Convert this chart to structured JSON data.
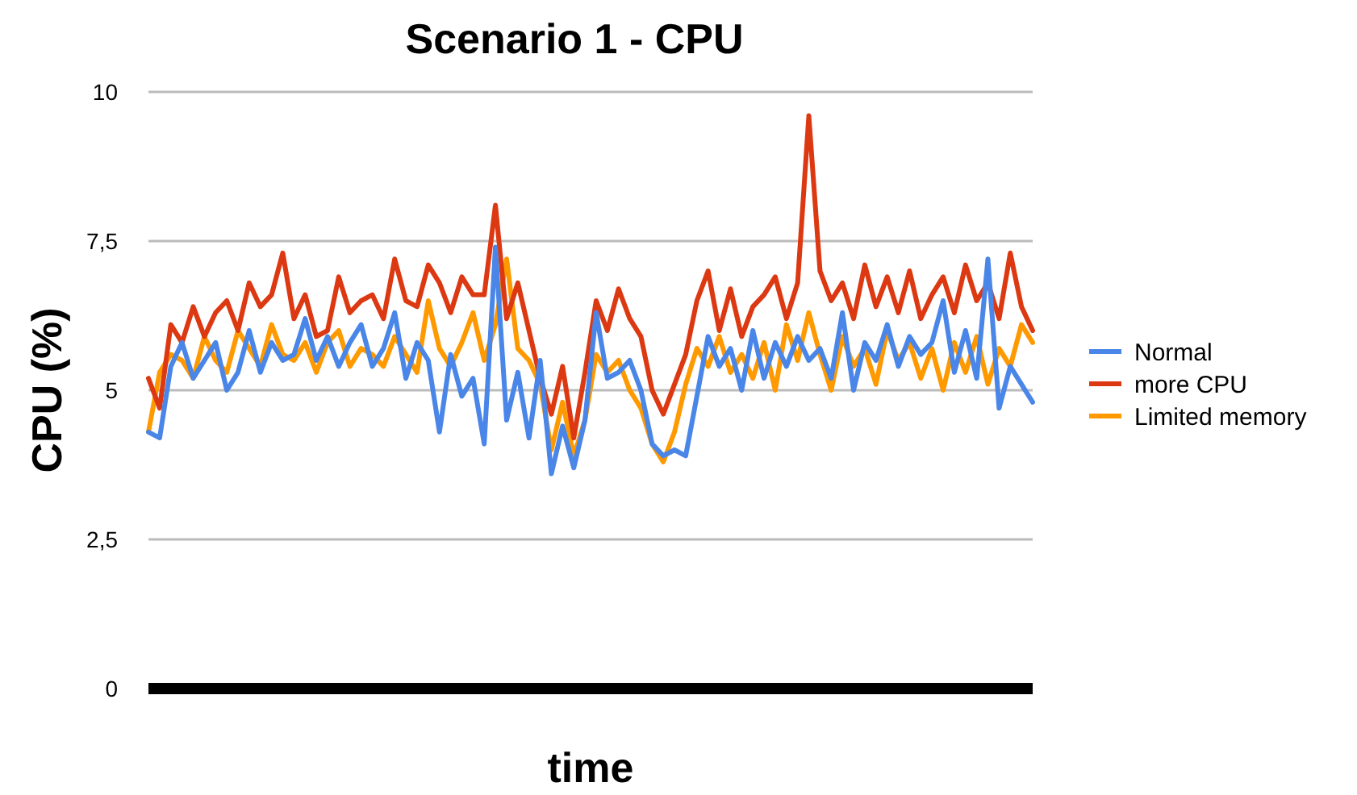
{
  "chart_data": {
    "type": "line",
    "title": "Scenario 1 - CPU",
    "xlabel": "time",
    "ylabel": "CPU (%)",
    "categories": [
      null,
      null,
      null,
      null,
      null,
      null,
      null,
      null,
      null,
      null,
      null,
      null,
      null,
      null,
      null,
      null,
      null,
      null,
      null,
      null,
      null,
      null,
      null,
      null,
      null,
      null,
      null,
      null,
      null,
      null,
      null,
      null,
      null,
      null,
      null,
      null,
      null,
      null,
      null,
      null,
      null,
      null,
      null,
      null,
      null,
      null,
      null,
      null,
      null,
      null,
      null,
      null,
      null,
      null,
      null,
      null,
      null,
      null,
      null,
      null,
      null,
      null,
      null,
      null,
      null,
      null,
      null,
      null,
      null,
      null,
      null,
      null,
      null,
      null,
      null,
      null,
      null,
      null,
      null,
      null
    ],
    "ylim": [
      0,
      10
    ],
    "yticks": [
      0,
      {
        "value": 2.5,
        "label": "2,5"
      },
      5,
      {
        "value": 7.5,
        "label": "7,5"
      },
      10
    ],
    "grid": "y",
    "legend": "right",
    "marker": "none",
    "line_style": "solid",
    "series": [
      {
        "name": "Normal",
        "color": "#4a86e8",
        "values": [
          4.3,
          4.2,
          5.4,
          5.8,
          5.2,
          5.5,
          5.8,
          5.0,
          5.3,
          6.0,
          5.3,
          5.8,
          5.5,
          5.6,
          6.2,
          5.5,
          5.9,
          5.4,
          5.8,
          6.1,
          5.4,
          5.7,
          6.3,
          5.2,
          5.8,
          5.5,
          4.3,
          5.6,
          4.9,
          5.2,
          4.1,
          7.4,
          4.5,
          5.3,
          4.2,
          5.5,
          3.6,
          4.4,
          3.7,
          4.5,
          6.3,
          5.2,
          5.3,
          5.5,
          5.0,
          4.1,
          3.9,
          4.0,
          3.9,
          4.9,
          5.9,
          5.4,
          5.7,
          5.0,
          6.0,
          5.2,
          5.8,
          5.4,
          5.9,
          5.5,
          5.7,
          5.2,
          6.3,
          5.0,
          5.8,
          5.5,
          6.1,
          5.4,
          5.9,
          5.6,
          5.8,
          6.5,
          5.3,
          6.0,
          5.2,
          7.2,
          4.7,
          5.4,
          5.1,
          4.8
        ]
      },
      {
        "name": "more CPU",
        "color": "#dc3912",
        "values": [
          5.2,
          4.7,
          6.1,
          5.8,
          6.4,
          5.9,
          6.3,
          6.5,
          6.0,
          6.8,
          6.4,
          6.6,
          7.3,
          6.2,
          6.6,
          5.9,
          6.0,
          6.9,
          6.3,
          6.5,
          6.6,
          6.2,
          7.2,
          6.5,
          6.4,
          7.1,
          6.8,
          6.3,
          6.9,
          6.6,
          6.6,
          8.1,
          6.2,
          6.8,
          6.0,
          5.2,
          4.6,
          5.4,
          4.2,
          5.3,
          6.5,
          6.0,
          6.7,
          6.2,
          5.9,
          5.0,
          4.6,
          5.1,
          5.6,
          6.5,
          7.0,
          6.0,
          6.7,
          5.9,
          6.4,
          6.6,
          6.9,
          6.2,
          6.8,
          9.6,
          7.0,
          6.5,
          6.8,
          6.2,
          7.1,
          6.4,
          6.9,
          6.3,
          7.0,
          6.2,
          6.6,
          6.9,
          6.3,
          7.1,
          6.5,
          6.8,
          6.2,
          7.3,
          6.4,
          6.0
        ]
      },
      {
        "name": "Limited memory",
        "color": "#ff9900",
        "values": [
          4.3,
          5.3,
          5.6,
          5.5,
          5.2,
          5.9,
          5.5,
          5.3,
          6.0,
          5.7,
          5.4,
          6.1,
          5.6,
          5.5,
          5.8,
          5.3,
          5.8,
          6.0,
          5.4,
          5.7,
          5.6,
          5.4,
          5.9,
          5.6,
          5.3,
          6.5,
          5.7,
          5.4,
          5.8,
          6.3,
          5.5,
          6.1,
          7.2,
          5.7,
          5.5,
          5.1,
          4.0,
          4.8,
          3.9,
          4.5,
          5.6,
          5.3,
          5.5,
          5.0,
          4.7,
          4.1,
          3.8,
          4.3,
          5.1,
          5.7,
          5.4,
          5.9,
          5.3,
          5.6,
          5.2,
          5.8,
          5.0,
          6.1,
          5.5,
          6.3,
          5.6,
          5.0,
          5.9,
          5.4,
          5.7,
          5.1,
          6.0,
          5.5,
          5.8,
          5.2,
          5.7,
          5.0,
          5.8,
          5.3,
          5.9,
          5.1,
          5.7,
          5.4,
          6.1,
          5.8
        ]
      }
    ]
  }
}
